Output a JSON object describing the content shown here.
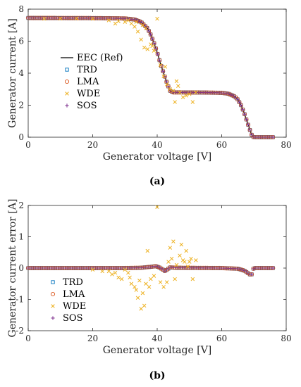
{
  "colors": {
    "ref": "#000000",
    "trd": "#0072BD",
    "lma": "#D95319",
    "wde": "#EDB120",
    "sos": "#7E2F8E"
  },
  "chart_data": [
    {
      "type": "scatter",
      "caption": "(a)",
      "xlabel": "Generator voltage [V]",
      "ylabel": "Generator current [A]",
      "xlim": [
        0,
        80
      ],
      "ylim": [
        0,
        8
      ],
      "xticks": [
        "0",
        "20",
        "40",
        "60",
        "80"
      ],
      "yticks": [
        "0",
        "2",
        "4",
        "6",
        "8"
      ],
      "grid": false,
      "legend_position": "center-left",
      "legend": [
        "EEC (Ref)",
        "TRD",
        "LMA",
        "WDE",
        "SOS"
      ],
      "ref_curve": [
        [
          0,
          7.45
        ],
        [
          20,
          7.44
        ],
        [
          30,
          7.42
        ],
        [
          33,
          7.35
        ],
        [
          35,
          7.2
        ],
        [
          37,
          6.8
        ],
        [
          38,
          6.4
        ],
        [
          39,
          5.9
        ],
        [
          40,
          5.3
        ],
        [
          41,
          4.6
        ],
        [
          42,
          4.0
        ],
        [
          43,
          3.4
        ],
        [
          44,
          2.9
        ],
        [
          45,
          2.8
        ],
        [
          55,
          2.79
        ],
        [
          60,
          2.77
        ],
        [
          62,
          2.72
        ],
        [
          64,
          2.55
        ],
        [
          65,
          2.35
        ],
        [
          66,
          2.0
        ],
        [
          67,
          1.5
        ],
        [
          68,
          0.9
        ],
        [
          69,
          0.3
        ],
        [
          69.5,
          0.05
        ],
        [
          70,
          0
        ],
        [
          76,
          0
        ]
      ],
      "wde_points": [
        [
          5,
          7.4
        ],
        [
          10,
          7.41
        ],
        [
          15,
          7.42
        ],
        [
          20,
          7.4
        ],
        [
          25,
          7.3
        ],
        [
          27,
          7.1
        ],
        [
          28,
          7.25
        ],
        [
          30,
          7.2
        ],
        [
          31,
          7.3
        ],
        [
          32,
          7.1
        ],
        [
          33,
          6.9
        ],
        [
          33.5,
          7.2
        ],
        [
          34,
          6.6
        ],
        [
          35,
          6.1
        ],
        [
          35.5,
          7.0
        ],
        [
          36,
          5.6
        ],
        [
          36.5,
          6.8
        ],
        [
          37,
          5.5
        ],
        [
          38,
          5.8
        ],
        [
          38.5,
          5.7
        ],
        [
          39,
          5.4
        ],
        [
          40,
          7.4
        ],
        [
          41,
          4.5
        ],
        [
          42,
          3.8
        ],
        [
          42.5,
          4.4
        ],
        [
          43,
          3.3
        ],
        [
          44,
          3.0
        ],
        [
          45,
          2.9
        ],
        [
          45.5,
          2.2
        ],
        [
          46,
          3.5
        ],
        [
          46.5,
          3.2
        ],
        [
          47,
          2.8
        ],
        [
          48,
          2.5
        ],
        [
          49,
          2.6
        ],
        [
          50,
          2.7
        ],
        [
          51,
          2.2
        ],
        [
          52,
          2.8
        ]
      ]
    },
    {
      "type": "scatter",
      "caption": "(b)",
      "xlabel": "Generator voltage [V]",
      "ylabel": "Generator current error [A]",
      "xlim": [
        0,
        80
      ],
      "ylim": [
        -2,
        2
      ],
      "xticks": [
        "0",
        "20",
        "40",
        "60",
        "80"
      ],
      "yticks": [
        "-2",
        "-1",
        "0",
        "1",
        "2"
      ],
      "grid": false,
      "legend_position": "bottom-left",
      "legend": [
        "TRD",
        "LMA",
        "WDE",
        "SOS"
      ],
      "error_curve": [
        [
          0,
          0
        ],
        [
          30,
          0
        ],
        [
          35,
          0.01
        ],
        [
          38,
          0.04
        ],
        [
          39.5,
          0.06
        ],
        [
          40.5,
          0.03
        ],
        [
          41.5,
          -0.03
        ],
        [
          42.5,
          -0.1
        ],
        [
          43,
          -0.05
        ],
        [
          44,
          0.02
        ],
        [
          46,
          0.01
        ],
        [
          60,
          0
        ],
        [
          65,
          -0.02
        ],
        [
          67,
          -0.08
        ],
        [
          68,
          -0.15
        ],
        [
          69,
          -0.22
        ],
        [
          69.3,
          -0.2
        ],
        [
          69.6,
          -0.05
        ],
        [
          70,
          0
        ],
        [
          76,
          0
        ]
      ],
      "wde_points": [
        [
          20,
          -0.05
        ],
        [
          23,
          -0.1
        ],
        [
          25,
          -0.1
        ],
        [
          26,
          -0.2
        ],
        [
          27,
          -0.15
        ],
        [
          28,
          -0.3
        ],
        [
          29,
          -0.35
        ],
        [
          30,
          -0.05
        ],
        [
          31,
          -0.15
        ],
        [
          31.5,
          -0.3
        ],
        [
          32,
          -0.5
        ],
        [
          33,
          -0.6
        ],
        [
          33.5,
          -0.7
        ],
        [
          34,
          -0.95
        ],
        [
          34.5,
          -0.4
        ],
        [
          35,
          -1.3
        ],
        [
          35.5,
          -0.8
        ],
        [
          36,
          -1.2
        ],
        [
          36.5,
          -0.5
        ],
        [
          37,
          0.55
        ],
        [
          37.5,
          -0.6
        ],
        [
          38,
          -0.35
        ],
        [
          39,
          -0.25
        ],
        [
          40,
          1.95
        ],
        [
          41,
          -0.45
        ],
        [
          42,
          -0.6
        ],
        [
          43,
          -0.45
        ],
        [
          43.5,
          0.2
        ],
        [
          44,
          0.65
        ],
        [
          44.5,
          0.3
        ],
        [
          45,
          0.85
        ],
        [
          45.5,
          -0.35
        ],
        [
          46,
          0.1
        ],
        [
          47,
          0.4
        ],
        [
          47.5,
          0.75
        ],
        [
          48,
          0.25
        ],
        [
          48.5,
          0.2
        ],
        [
          49,
          0.55
        ],
        [
          49.5,
          0.05
        ],
        [
          50,
          0.2
        ],
        [
          50.5,
          0.3
        ],
        [
          51,
          -0.35
        ],
        [
          52,
          0.25
        ]
      ]
    }
  ]
}
